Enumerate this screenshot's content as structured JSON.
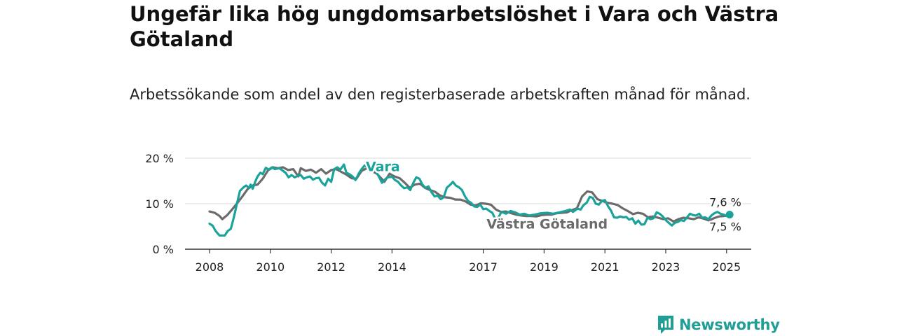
{
  "header": {
    "title": "Ungefär lika hög ungdomsarbetslöshet i Vara och Västra Götaland",
    "subtitle": "Arbetssökande som andel av den registerbaserade arbetskraften månad för månad."
  },
  "brand": {
    "name": "Newsworthy",
    "icon": "newsworthy-logo-icon",
    "color": "#1f9e95"
  },
  "chart_data": {
    "type": "line",
    "ylim": [
      0,
      20
    ],
    "xlim": [
      2007.9,
      2025.6
    ],
    "y_ticks": [
      0,
      10,
      20
    ],
    "y_tick_labels": [
      "0 %",
      "10 %",
      "20 %"
    ],
    "x_ticks": [
      2008,
      2010,
      2012,
      2014,
      2017,
      2019,
      2021,
      2023,
      2025
    ],
    "x_tick_labels": [
      "2008",
      "2010",
      "2012",
      "2014",
      "2017",
      "2019",
      "2021",
      "2023",
      "2025"
    ],
    "grid": true,
    "series": [
      {
        "name": "Västra Götaland",
        "color": "#6b6b6b",
        "end_label": "7,5 %",
        "points": [
          [
            2008.0,
            8.3
          ],
          [
            2008.17,
            8.0
          ],
          [
            2008.33,
            7.3
          ],
          [
            2008.42,
            6.6
          ],
          [
            2008.58,
            7.5
          ],
          [
            2008.75,
            8.8
          ],
          [
            2008.92,
            10.2
          ],
          [
            2009.08,
            11.6
          ],
          [
            2009.25,
            13.2
          ],
          [
            2009.42,
            14.0
          ],
          [
            2009.58,
            14.2
          ],
          [
            2009.75,
            15.5
          ],
          [
            2009.92,
            17.3
          ],
          [
            2010.08,
            18.0
          ],
          [
            2010.25,
            17.8
          ],
          [
            2010.42,
            18.0
          ],
          [
            2010.58,
            17.4
          ],
          [
            2010.75,
            17.6
          ],
          [
            2010.92,
            16.0
          ],
          [
            2011.0,
            17.8
          ],
          [
            2011.17,
            17.2
          ],
          [
            2011.33,
            17.5
          ],
          [
            2011.5,
            16.8
          ],
          [
            2011.67,
            17.6
          ],
          [
            2011.83,
            16.6
          ],
          [
            2012.0,
            17.4
          ],
          [
            2012.17,
            17.6
          ],
          [
            2012.33,
            17.0
          ],
          [
            2012.5,
            16.4
          ],
          [
            2012.67,
            15.6
          ],
          [
            2012.83,
            15.5
          ],
          [
            2013.0,
            17.2
          ],
          [
            2013.17,
            17.8
          ],
          [
            2013.33,
            17.2
          ],
          [
            2013.5,
            16.6
          ],
          [
            2013.67,
            15.4
          ],
          [
            2013.75,
            14.8
          ],
          [
            2013.92,
            16.6
          ],
          [
            2014.08,
            16.0
          ],
          [
            2014.25,
            15.6
          ],
          [
            2014.42,
            14.6
          ],
          [
            2014.58,
            13.5
          ],
          [
            2014.75,
            14.2
          ],
          [
            2014.92,
            14.4
          ],
          [
            2015.08,
            13.5
          ],
          [
            2015.25,
            13.0
          ],
          [
            2015.42,
            12.6
          ],
          [
            2015.58,
            11.8
          ],
          [
            2015.75,
            11.4
          ],
          [
            2015.92,
            11.3
          ],
          [
            2016.08,
            10.9
          ],
          [
            2016.25,
            10.9
          ],
          [
            2016.42,
            10.5
          ],
          [
            2016.58,
            9.8
          ],
          [
            2016.75,
            9.6
          ],
          [
            2016.92,
            10.1
          ],
          [
            2017.08,
            10.0
          ],
          [
            2017.25,
            9.8
          ],
          [
            2017.42,
            8.7
          ],
          [
            2017.58,
            8.2
          ],
          [
            2017.75,
            8.3
          ],
          [
            2017.92,
            7.9
          ],
          [
            2018.08,
            7.6
          ],
          [
            2018.25,
            7.4
          ],
          [
            2018.42,
            7.3
          ],
          [
            2018.58,
            7.3
          ],
          [
            2018.75,
            7.2
          ],
          [
            2018.92,
            7.5
          ],
          [
            2019.08,
            7.6
          ],
          [
            2019.25,
            7.6
          ],
          [
            2019.42,
            7.9
          ],
          [
            2019.58,
            8.0
          ],
          [
            2019.75,
            8.1
          ],
          [
            2019.92,
            8.6
          ],
          [
            2020.08,
            9.0
          ],
          [
            2020.25,
            11.6
          ],
          [
            2020.42,
            12.7
          ],
          [
            2020.58,
            12.5
          ],
          [
            2020.75,
            11.0
          ],
          [
            2020.92,
            10.6
          ],
          [
            2021.08,
            10.2
          ],
          [
            2021.25,
            10.0
          ],
          [
            2021.42,
            9.7
          ],
          [
            2021.58,
            9.0
          ],
          [
            2021.75,
            8.4
          ],
          [
            2021.92,
            7.7
          ],
          [
            2022.08,
            8.0
          ],
          [
            2022.25,
            7.8
          ],
          [
            2022.42,
            7.0
          ],
          [
            2022.58,
            7.2
          ],
          [
            2022.75,
            6.9
          ],
          [
            2022.92,
            6.6
          ],
          [
            2023.08,
            6.8
          ],
          [
            2023.25,
            6.1
          ],
          [
            2023.42,
            6.6
          ],
          [
            2023.58,
            6.9
          ],
          [
            2023.75,
            6.8
          ],
          [
            2023.92,
            6.6
          ],
          [
            2024.08,
            7.0
          ],
          [
            2024.25,
            6.7
          ],
          [
            2024.42,
            6.3
          ],
          [
            2024.58,
            6.8
          ],
          [
            2024.75,
            7.2
          ],
          [
            2024.92,
            7.3
          ],
          [
            2025.08,
            7.5
          ]
        ]
      },
      {
        "name": "Vara",
        "color": "#1aa39a",
        "end_label": "7,6 %",
        "points": [
          [
            2008.0,
            5.6
          ],
          [
            2008.1,
            5.2
          ],
          [
            2008.2,
            4.0
          ],
          [
            2008.33,
            3.0
          ],
          [
            2008.5,
            3.0
          ],
          [
            2008.6,
            4.0
          ],
          [
            2008.7,
            4.5
          ],
          [
            2008.8,
            7.0
          ],
          [
            2008.9,
            10.0
          ],
          [
            2009.0,
            12.8
          ],
          [
            2009.1,
            13.5
          ],
          [
            2009.2,
            14.0
          ],
          [
            2009.3,
            13.5
          ],
          [
            2009.35,
            14.2
          ],
          [
            2009.42,
            13.3
          ],
          [
            2009.5,
            14.8
          ],
          [
            2009.58,
            16.0
          ],
          [
            2009.67,
            16.8
          ],
          [
            2009.75,
            16.5
          ],
          [
            2009.85,
            17.9
          ],
          [
            2009.95,
            17.5
          ],
          [
            2010.05,
            18.0
          ],
          [
            2010.15,
            17.6
          ],
          [
            2010.3,
            17.8
          ],
          [
            2010.42,
            17.2
          ],
          [
            2010.5,
            16.8
          ],
          [
            2010.6,
            15.8
          ],
          [
            2010.7,
            16.3
          ],
          [
            2010.8,
            15.8
          ],
          [
            2010.9,
            16.1
          ],
          [
            2011.0,
            16.3
          ],
          [
            2011.1,
            15.5
          ],
          [
            2011.2,
            15.8
          ],
          [
            2011.3,
            16.0
          ],
          [
            2011.4,
            15.3
          ],
          [
            2011.5,
            15.6
          ],
          [
            2011.6,
            15.7
          ],
          [
            2011.7,
            14.6
          ],
          [
            2011.8,
            14.0
          ],
          [
            2011.9,
            15.5
          ],
          [
            2012.0,
            14.8
          ],
          [
            2012.1,
            17.6
          ],
          [
            2012.2,
            18.0
          ],
          [
            2012.3,
            17.5
          ],
          [
            2012.42,
            18.6
          ],
          [
            2012.5,
            16.8
          ],
          [
            2012.6,
            16.5
          ],
          [
            2012.7,
            16.0
          ],
          [
            2012.8,
            15.2
          ],
          [
            2012.92,
            16.8
          ],
          [
            2013.0,
            17.6
          ],
          [
            2013.1,
            18.4
          ],
          [
            2013.2,
            18.0
          ],
          [
            2013.3,
            18.3
          ],
          [
            2013.42,
            17.6
          ],
          [
            2013.5,
            16.8
          ],
          [
            2013.58,
            15.8
          ],
          [
            2013.67,
            14.6
          ],
          [
            2013.75,
            15.2
          ],
          [
            2013.85,
            15.8
          ],
          [
            2014.0,
            15.9
          ],
          [
            2014.1,
            15.2
          ],
          [
            2014.2,
            14.8
          ],
          [
            2014.3,
            14.0
          ],
          [
            2014.4,
            13.4
          ],
          [
            2014.5,
            13.6
          ],
          [
            2014.6,
            13.0
          ],
          [
            2014.7,
            14.6
          ],
          [
            2014.8,
            15.8
          ],
          [
            2014.9,
            15.5
          ],
          [
            2015.0,
            14.2
          ],
          [
            2015.1,
            13.5
          ],
          [
            2015.2,
            13.8
          ],
          [
            2015.3,
            12.5
          ],
          [
            2015.4,
            11.6
          ],
          [
            2015.5,
            11.8
          ],
          [
            2015.6,
            11.0
          ],
          [
            2015.7,
            11.4
          ],
          [
            2015.8,
            13.5
          ],
          [
            2015.92,
            14.2
          ],
          [
            2016.0,
            14.8
          ],
          [
            2016.1,
            14.0
          ],
          [
            2016.2,
            13.6
          ],
          [
            2016.3,
            13.0
          ],
          [
            2016.4,
            11.6
          ],
          [
            2016.5,
            10.6
          ],
          [
            2016.6,
            10.2
          ],
          [
            2016.7,
            9.4
          ],
          [
            2016.8,
            9.3
          ],
          [
            2016.9,
            9.8
          ],
          [
            2017.0,
            8.8
          ],
          [
            2017.1,
            8.9
          ],
          [
            2017.2,
            8.4
          ],
          [
            2017.3,
            8.0
          ],
          [
            2017.42,
            6.3
          ],
          [
            2017.5,
            7.0
          ],
          [
            2017.6,
            8.2
          ],
          [
            2017.75,
            7.8
          ],
          [
            2017.9,
            8.4
          ],
          [
            2018.05,
            8.1
          ],
          [
            2018.2,
            7.6
          ],
          [
            2018.35,
            7.8
          ],
          [
            2018.5,
            7.4
          ],
          [
            2018.7,
            7.6
          ],
          [
            2018.9,
            7.9
          ],
          [
            2019.1,
            8.0
          ],
          [
            2019.3,
            7.8
          ],
          [
            2019.5,
            8.1
          ],
          [
            2019.7,
            8.4
          ],
          [
            2019.85,
            8.7
          ],
          [
            2019.95,
            8.2
          ],
          [
            2020.1,
            8.9
          ],
          [
            2020.2,
            8.7
          ],
          [
            2020.3,
            9.7
          ],
          [
            2020.4,
            10.2
          ],
          [
            2020.5,
            11.5
          ],
          [
            2020.6,
            11.3
          ],
          [
            2020.7,
            10.0
          ],
          [
            2020.8,
            9.8
          ],
          [
            2020.9,
            10.6
          ],
          [
            2021.0,
            10.8
          ],
          [
            2021.1,
            9.5
          ],
          [
            2021.2,
            8.5
          ],
          [
            2021.3,
            7.0
          ],
          [
            2021.4,
            6.9
          ],
          [
            2021.5,
            7.2
          ],
          [
            2021.6,
            7.0
          ],
          [
            2021.7,
            7.1
          ],
          [
            2021.8,
            6.5
          ],
          [
            2021.9,
            6.8
          ],
          [
            2022.0,
            5.6
          ],
          [
            2022.1,
            6.3
          ],
          [
            2022.2,
            5.4
          ],
          [
            2022.3,
            5.5
          ],
          [
            2022.4,
            6.9
          ],
          [
            2022.5,
            6.6
          ],
          [
            2022.6,
            6.8
          ],
          [
            2022.7,
            8.1
          ],
          [
            2022.8,
            7.8
          ],
          [
            2022.9,
            7.2
          ],
          [
            2023.0,
            6.4
          ],
          [
            2023.1,
            5.8
          ],
          [
            2023.2,
            5.2
          ],
          [
            2023.3,
            5.8
          ],
          [
            2023.4,
            6.0
          ],
          [
            2023.5,
            6.4
          ],
          [
            2023.6,
            6.2
          ],
          [
            2023.7,
            7.0
          ],
          [
            2023.8,
            7.8
          ],
          [
            2023.9,
            7.5
          ],
          [
            2024.0,
            7.4
          ],
          [
            2024.1,
            7.8
          ],
          [
            2024.2,
            6.9
          ],
          [
            2024.3,
            7.0
          ],
          [
            2024.4,
            6.6
          ],
          [
            2024.5,
            7.4
          ],
          [
            2024.6,
            7.9
          ],
          [
            2024.7,
            8.2
          ],
          [
            2024.8,
            7.8
          ],
          [
            2024.9,
            7.6
          ],
          [
            2025.0,
            7.3
          ],
          [
            2025.1,
            7.6
          ]
        ]
      }
    ]
  }
}
